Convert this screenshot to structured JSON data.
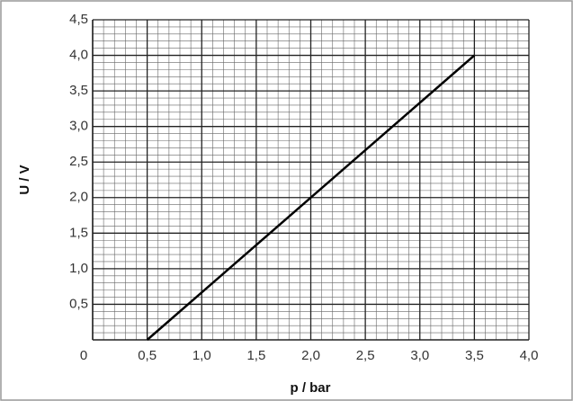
{
  "chart_data": {
    "type": "line",
    "xlabel": "p / bar",
    "ylabel": "U / V",
    "x": [
      0.5,
      3.5
    ],
    "series": [
      {
        "color": "#000000",
        "values": [
          0,
          4.0
        ]
      }
    ],
    "xlim": [
      0,
      4
    ],
    "ylim": [
      0,
      4.5
    ],
    "xticks": [
      {
        "value": 0,
        "label": "0"
      },
      {
        "value": 0.5,
        "label": "0,5"
      },
      {
        "value": 1,
        "label": "1,0"
      },
      {
        "value": 1.5,
        "label": "1,5"
      },
      {
        "value": 2,
        "label": "2,0"
      },
      {
        "value": 2.5,
        "label": "2,5"
      },
      {
        "value": 3,
        "label": "3,0"
      },
      {
        "value": 3.5,
        "label": "3,5"
      },
      {
        "value": 4,
        "label": "4,0"
      }
    ],
    "yticks": [
      {
        "value": 0.5,
        "label": "0,5"
      },
      {
        "value": 1,
        "label": "1,0"
      },
      {
        "value": 1.5,
        "label": "1,5"
      },
      {
        "value": 2,
        "label": "2,0"
      },
      {
        "value": 2.5,
        "label": "2,5"
      },
      {
        "value": 3,
        "label": "3,0"
      },
      {
        "value": 3.5,
        "label": "3,5"
      },
      {
        "value": 4,
        "label": "4,0"
      },
      {
        "value": 4.5,
        "label": "4,5"
      }
    ],
    "grid": true
  }
}
